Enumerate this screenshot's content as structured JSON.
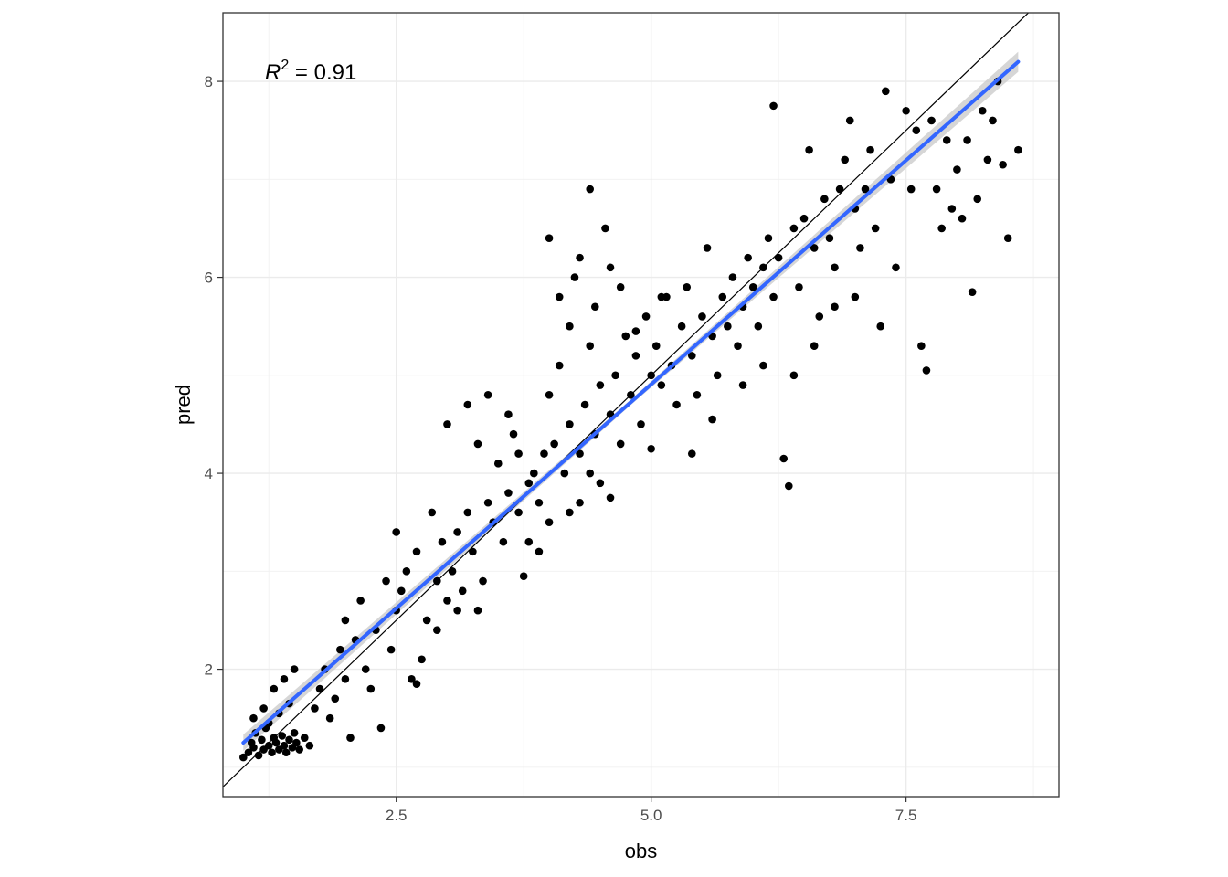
{
  "chart_data": {
    "type": "scatter",
    "xlabel": "obs",
    "ylabel": "pred",
    "xlim": [
      0.8,
      9.0
    ],
    "ylim": [
      0.7,
      8.7
    ],
    "x_ticks": [
      2.5,
      5.0,
      7.5
    ],
    "x_tick_labels": [
      "2.5",
      "5.0",
      "7.5"
    ],
    "y_ticks": [
      2,
      4,
      6,
      8
    ],
    "y_tick_labels": [
      "2",
      "4",
      "6",
      "8"
    ],
    "grid": true,
    "annotation": {
      "label_base": "R",
      "label_exp": "2",
      "label_rest": " = 0.91"
    },
    "reference_line": {
      "kind": "identity",
      "slope": 1,
      "intercept": 0,
      "color": "#000000"
    },
    "fit_line": {
      "x": [
        1.0,
        8.6
      ],
      "y": [
        1.25,
        8.2
      ],
      "color": "#3366ff",
      "band_color": "#c8c8c8"
    },
    "point_color": "#000000",
    "points": [
      [
        1.0,
        1.1
      ],
      [
        1.05,
        1.15
      ],
      [
        1.08,
        1.25
      ],
      [
        1.1,
        1.2
      ],
      [
        1.12,
        1.35
      ],
      [
        1.15,
        1.12
      ],
      [
        1.18,
        1.28
      ],
      [
        1.2,
        1.18
      ],
      [
        1.22,
        1.4
      ],
      [
        1.25,
        1.22
      ],
      [
        1.28,
        1.15
      ],
      [
        1.3,
        1.3
      ],
      [
        1.32,
        1.25
      ],
      [
        1.35,
        1.18
      ],
      [
        1.38,
        1.32
      ],
      [
        1.4,
        1.22
      ],
      [
        1.42,
        1.15
      ],
      [
        1.45,
        1.28
      ],
      [
        1.48,
        1.2
      ],
      [
        1.5,
        1.35
      ],
      [
        1.52,
        1.25
      ],
      [
        1.55,
        1.18
      ],
      [
        1.6,
        1.3
      ],
      [
        1.65,
        1.22
      ],
      [
        1.1,
        1.5
      ],
      [
        1.2,
        1.6
      ],
      [
        1.3,
        1.8
      ],
      [
        1.4,
        1.9
      ],
      [
        1.5,
        2.0
      ],
      [
        1.25,
        1.45
      ],
      [
        1.35,
        1.55
      ],
      [
        1.45,
        1.65
      ],
      [
        1.7,
        1.6
      ],
      [
        1.75,
        1.8
      ],
      [
        1.8,
        2.0
      ],
      [
        1.85,
        1.5
      ],
      [
        1.9,
        1.7
      ],
      [
        1.95,
        2.2
      ],
      [
        2.0,
        1.9
      ],
      [
        2.0,
        2.5
      ],
      [
        2.05,
        1.3
      ],
      [
        2.1,
        2.3
      ],
      [
        2.15,
        2.7
      ],
      [
        2.2,
        2.0
      ],
      [
        2.25,
        1.8
      ],
      [
        2.3,
        2.4
      ],
      [
        2.35,
        1.4
      ],
      [
        2.4,
        2.9
      ],
      [
        2.45,
        2.2
      ],
      [
        2.5,
        2.6
      ],
      [
        2.5,
        3.4
      ],
      [
        2.55,
        2.8
      ],
      [
        2.6,
        3.0
      ],
      [
        2.65,
        1.9
      ],
      [
        2.7,
        3.2
      ],
      [
        2.75,
        2.1
      ],
      [
        2.8,
        2.5
      ],
      [
        2.85,
        3.6
      ],
      [
        2.9,
        2.9
      ],
      [
        2.95,
        3.3
      ],
      [
        3.0,
        2.7
      ],
      [
        3.0,
        4.5
      ],
      [
        3.05,
        3.0
      ],
      [
        3.1,
        3.4
      ],
      [
        3.15,
        2.8
      ],
      [
        3.2,
        3.6
      ],
      [
        3.25,
        3.2
      ],
      [
        3.3,
        4.3
      ],
      [
        3.35,
        2.9
      ],
      [
        3.4,
        3.7
      ],
      [
        3.45,
        3.5
      ],
      [
        3.5,
        4.1
      ],
      [
        3.55,
        3.3
      ],
      [
        3.6,
        3.8
      ],
      [
        3.65,
        4.4
      ],
      [
        3.7,
        3.6
      ],
      [
        3.75,
        2.95
      ],
      [
        3.8,
        3.9
      ],
      [
        3.85,
        4.0
      ],
      [
        3.9,
        3.7
      ],
      [
        3.95,
        4.2
      ],
      [
        4.0,
        4.8
      ],
      [
        4.0,
        6.4
      ],
      [
        4.05,
        4.3
      ],
      [
        4.1,
        5.1
      ],
      [
        4.15,
        4.0
      ],
      [
        4.2,
        4.5
      ],
      [
        4.25,
        6.0
      ],
      [
        4.3,
        4.2
      ],
      [
        4.35,
        4.7
      ],
      [
        4.4,
        5.3
      ],
      [
        4.4,
        6.9
      ],
      [
        4.45,
        4.4
      ],
      [
        4.5,
        4.9
      ],
      [
        4.55,
        6.5
      ],
      [
        4.6,
        4.6
      ],
      [
        4.65,
        5.0
      ],
      [
        4.7,
        4.3
      ],
      [
        4.75,
        5.4
      ],
      [
        4.8,
        4.8
      ],
      [
        4.85,
        5.2
      ],
      [
        4.9,
        4.5
      ],
      [
        4.95,
        5.6
      ],
      [
        5.0,
        5.0
      ],
      [
        5.0,
        4.25
      ],
      [
        5.05,
        5.3
      ],
      [
        5.1,
        4.9
      ],
      [
        5.15,
        5.8
      ],
      [
        5.2,
        5.1
      ],
      [
        5.25,
        4.7
      ],
      [
        5.3,
        5.5
      ],
      [
        5.35,
        5.9
      ],
      [
        5.4,
        5.2
      ],
      [
        5.45,
        4.8
      ],
      [
        5.5,
        5.6
      ],
      [
        5.55,
        6.3
      ],
      [
        5.6,
        5.4
      ],
      [
        5.65,
        5.0
      ],
      [
        5.7,
        5.8
      ],
      [
        5.75,
        5.5
      ],
      [
        5.8,
        6.0
      ],
      [
        5.85,
        5.3
      ],
      [
        5.9,
        5.7
      ],
      [
        5.95,
        6.2
      ],
      [
        6.0,
        5.9
      ],
      [
        6.05,
        5.5
      ],
      [
        6.1,
        6.1
      ],
      [
        6.15,
        6.4
      ],
      [
        6.2,
        5.8
      ],
      [
        6.2,
        7.75
      ],
      [
        6.25,
        6.2
      ],
      [
        6.3,
        4.15
      ],
      [
        6.35,
        3.87
      ],
      [
        6.4,
        6.5
      ],
      [
        6.45,
        5.9
      ],
      [
        6.5,
        6.6
      ],
      [
        6.55,
        7.3
      ],
      [
        6.6,
        6.3
      ],
      [
        6.65,
        5.6
      ],
      [
        6.7,
        6.8
      ],
      [
        6.75,
        6.4
      ],
      [
        6.8,
        6.1
      ],
      [
        6.85,
        6.9
      ],
      [
        6.9,
        7.2
      ],
      [
        6.95,
        7.6
      ],
      [
        7.0,
        6.7
      ],
      [
        7.05,
        6.3
      ],
      [
        7.1,
        6.9
      ],
      [
        7.15,
        7.3
      ],
      [
        7.2,
        6.5
      ],
      [
        7.25,
        5.5
      ],
      [
        7.3,
        7.9
      ],
      [
        7.35,
        7.0
      ],
      [
        7.4,
        6.1
      ],
      [
        7.5,
        7.7
      ],
      [
        7.55,
        6.9
      ],
      [
        7.6,
        7.5
      ],
      [
        7.65,
        5.3
      ],
      [
        7.7,
        5.05
      ],
      [
        7.75,
        7.6
      ],
      [
        7.8,
        6.9
      ],
      [
        7.85,
        6.5
      ],
      [
        7.9,
        7.4
      ],
      [
        7.95,
        6.7
      ],
      [
        8.0,
        7.1
      ],
      [
        8.05,
        6.6
      ],
      [
        8.1,
        7.4
      ],
      [
        8.15,
        5.85
      ],
      [
        8.2,
        6.8
      ],
      [
        8.25,
        7.7
      ],
      [
        8.3,
        7.2
      ],
      [
        8.35,
        7.6
      ],
      [
        8.4,
        8.0
      ],
      [
        8.45,
        7.15
      ],
      [
        8.5,
        6.4
      ],
      [
        8.6,
        7.3
      ],
      [
        4.1,
        5.8
      ],
      [
        4.2,
        5.5
      ],
      [
        4.3,
        6.2
      ],
      [
        4.45,
        5.7
      ],
      [
        4.6,
        6.1
      ],
      [
        4.7,
        5.9
      ],
      [
        4.85,
        5.45
      ],
      [
        5.1,
        5.8
      ],
      [
        3.6,
        4.6
      ],
      [
        3.4,
        4.8
      ],
      [
        3.2,
        4.7
      ],
      [
        3.7,
        4.2
      ],
      [
        3.8,
        3.3
      ],
      [
        3.9,
        3.2
      ],
      [
        4.0,
        3.5
      ],
      [
        4.3,
        3.7
      ],
      [
        4.5,
        3.9
      ],
      [
        4.6,
        3.75
      ],
      [
        4.2,
        3.6
      ],
      [
        4.4,
        4.0
      ],
      [
        2.7,
        1.85
      ],
      [
        2.9,
        2.4
      ],
      [
        3.1,
        2.6
      ],
      [
        3.3,
        2.6
      ],
      [
        5.4,
        4.2
      ],
      [
        5.6,
        4.55
      ],
      [
        5.9,
        4.9
      ],
      [
        6.1,
        5.1
      ],
      [
        6.4,
        5.0
      ],
      [
        6.6,
        5.3
      ],
      [
        6.8,
        5.7
      ],
      [
        7.0,
        5.8
      ]
    ]
  }
}
